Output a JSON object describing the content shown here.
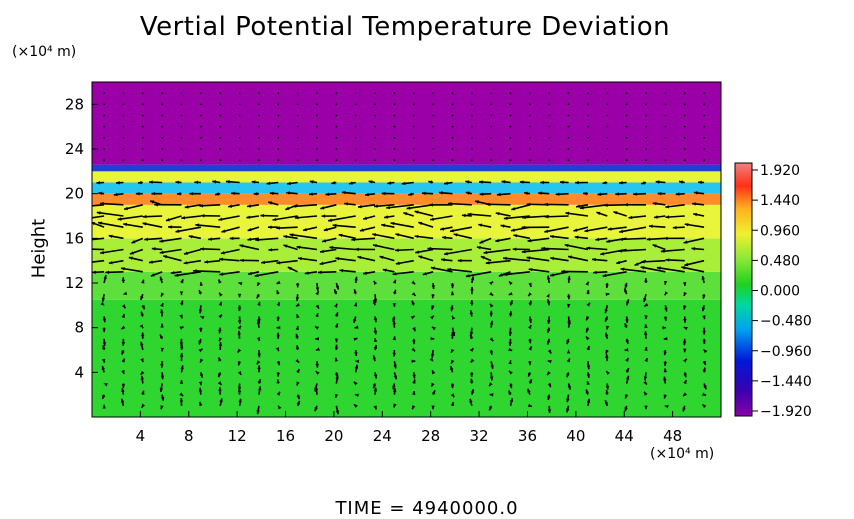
{
  "chart_data": {
    "type": "heatmap",
    "title": "Vertial Potential Temperature Deviation",
    "ylabel": "Height",
    "y_unit": "(×10⁴ m)",
    "x_unit": "(×10⁴ m)",
    "x_ticks": [
      4,
      8,
      12,
      16,
      20,
      24,
      28,
      32,
      36,
      40,
      44,
      48
    ],
    "y_ticks": [
      4,
      8,
      12,
      16,
      20,
      24,
      28
    ],
    "xlim": [
      0,
      52
    ],
    "ylim": [
      0,
      30
    ],
    "colorbar": {
      "labels": [
        "1.920",
        "1.440",
        "0.960",
        "0.480",
        "0.000",
        "−0.480",
        "−0.960",
        "−1.440",
        "−1.920"
      ],
      "range": [
        -1.92,
        1.92
      ]
    },
    "bands": [
      {
        "y0": 0,
        "y1": 10.5,
        "color": "#2fd62f",
        "approx_value": 0.05
      },
      {
        "y0": 10.5,
        "y1": 13,
        "color": "#5ee03c",
        "approx_value": 0.2
      },
      {
        "y0": 13,
        "y1": 16,
        "color": "#a9ef3a",
        "approx_value": 0.45
      },
      {
        "y0": 16,
        "y1": 19,
        "color": "#e8f53a",
        "approx_value": 0.75
      },
      {
        "y0": 19,
        "y1": 20,
        "color": "#ff8c28",
        "approx_value": 1.3
      },
      {
        "y0": 20,
        "y1": 21,
        "color": "#27c6f0",
        "approx_value": -0.5
      },
      {
        "y0": 21,
        "y1": 22,
        "color": "#e8f53a",
        "approx_value": 0.9
      },
      {
        "y0": 22,
        "y1": 22.6,
        "color": "#1f3fd6",
        "approx_value": -1.3
      },
      {
        "y0": 22.6,
        "y1": 30,
        "color": "#9b00a8",
        "approx_value": -1.92
      }
    ],
    "grid": false,
    "legend": "colorbar-right"
  },
  "time": {
    "label": "TIME",
    "value": "4940000.0"
  }
}
